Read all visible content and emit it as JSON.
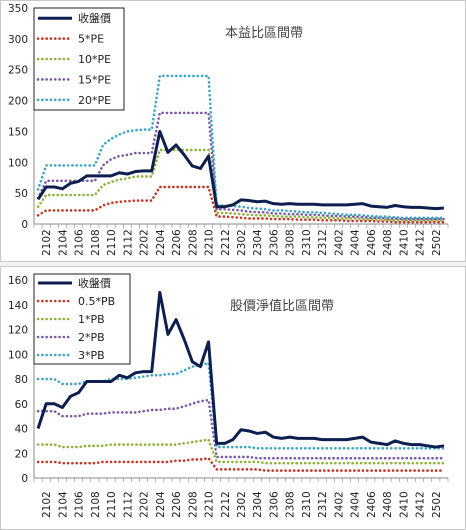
{
  "chart_data": [
    {
      "type": "line",
      "title": "本益比區間帶",
      "xlabel": "",
      "ylabel": "",
      "ylim": [
        0,
        350
      ],
      "yticks": [
        0,
        50,
        100,
        150,
        200,
        250,
        300,
        350
      ],
      "categories": [
        "2101",
        "2102",
        "2103",
        "2104",
        "2105",
        "2106",
        "2107",
        "2108",
        "2109",
        "2110",
        "2111",
        "2112",
        "2201",
        "2202",
        "2203",
        "2204",
        "2205",
        "2206",
        "2207",
        "2208",
        "2209",
        "2210",
        "2211",
        "2212",
        "2301",
        "2302",
        "2303",
        "2304",
        "2305",
        "2306",
        "2307",
        "2308",
        "2309",
        "2310",
        "2311",
        "2312",
        "2401",
        "2402",
        "2403",
        "2404",
        "2405",
        "2406",
        "2407",
        "2408",
        "2409",
        "2410",
        "2411",
        "2412",
        "2501",
        "2502",
        "2503"
      ],
      "tick_labels": [
        "2102",
        "2104",
        "2106",
        "2108",
        "2110",
        "2112",
        "2202",
        "2204",
        "2206",
        "2208",
        "2210",
        "2212",
        "2302",
        "2304",
        "2306",
        "2308",
        "2310",
        "2312",
        "2402",
        "2404",
        "2406",
        "2408",
        "2410",
        "2412",
        "2502"
      ],
      "legend_position": "top-left",
      "series": [
        {
          "name": "收盤價",
          "color": "#0d1f4f",
          "style": "solid",
          "values": [
            40,
            60,
            60,
            57,
            66,
            69,
            78,
            78,
            78,
            78,
            83,
            81,
            85,
            86,
            86,
            150,
            116,
            128,
            112,
            94,
            90,
            110,
            28,
            28,
            31,
            39,
            38,
            36,
            37,
            33,
            32,
            33,
            32,
            32,
            32,
            31,
            31,
            31,
            31,
            32,
            33,
            29,
            28,
            27,
            30,
            28,
            27,
            27,
            26,
            25,
            26
          ]
        },
        {
          "name": "5*PE",
          "color": "#c0392b",
          "style": "dotted",
          "values": [
            14,
            22,
            22,
            22,
            22,
            22,
            22,
            22,
            30,
            34,
            36,
            37,
            38,
            38,
            38,
            60,
            60,
            60,
            60,
            60,
            60,
            60,
            12,
            12,
            11,
            10,
            9,
            9,
            9,
            8,
            8,
            8,
            7,
            7,
            7,
            6,
            6,
            6,
            5,
            5,
            5,
            5,
            4,
            4,
            3,
            3,
            3,
            3,
            3,
            3,
            3
          ]
        },
        {
          "name": "10*PE",
          "color": "#8db33a",
          "style": "dotted",
          "values": [
            28,
            47,
            47,
            47,
            47,
            47,
            47,
            47,
            63,
            68,
            72,
            74,
            77,
            77,
            77,
            120,
            120,
            120,
            120,
            120,
            120,
            120,
            18,
            18,
            17,
            16,
            15,
            14,
            14,
            13,
            12,
            12,
            12,
            11,
            11,
            10,
            10,
            9,
            9,
            9,
            8,
            8,
            7,
            7,
            6,
            6,
            6,
            6,
            6,
            6,
            6
          ]
        },
        {
          "name": "15*PE",
          "color": "#7a5aa6",
          "style": "dotted",
          "values": [
            42,
            70,
            70,
            70,
            70,
            70,
            70,
            70,
            95,
            105,
            110,
            112,
            115,
            115,
            115,
            180,
            180,
            180,
            180,
            180,
            180,
            180,
            24,
            24,
            23,
            22,
            20,
            19,
            19,
            17,
            17,
            16,
            16,
            15,
            15,
            14,
            13,
            13,
            12,
            12,
            11,
            10,
            10,
            9,
            9,
            8,
            8,
            8,
            8,
            8,
            8
          ]
        },
        {
          "name": "20*PE",
          "color": "#3aa6c4",
          "style": "dotted",
          "values": [
            56,
            95,
            95,
            95,
            95,
            95,
            95,
            95,
            128,
            138,
            145,
            150,
            152,
            153,
            153,
            240,
            240,
            240,
            240,
            240,
            240,
            240,
            30,
            30,
            29,
            28,
            26,
            25,
            24,
            22,
            22,
            21,
            20,
            19,
            19,
            18,
            17,
            16,
            15,
            15,
            14,
            13,
            12,
            12,
            11,
            10,
            10,
            10,
            10,
            10,
            10
          ]
        }
      ]
    },
    {
      "type": "line",
      "title": "股價淨值比區間帶",
      "xlabel": "",
      "ylabel": "",
      "ylim": [
        0,
        160
      ],
      "yticks": [
        0,
        20,
        40,
        60,
        80,
        100,
        120,
        140,
        160
      ],
      "categories": [
        "2101",
        "2102",
        "2103",
        "2104",
        "2105",
        "2106",
        "2107",
        "2108",
        "2109",
        "2110",
        "2111",
        "2112",
        "2201",
        "2202",
        "2203",
        "2204",
        "2205",
        "2206",
        "2207",
        "2208",
        "2209",
        "2210",
        "2211",
        "2212",
        "2301",
        "2302",
        "2303",
        "2304",
        "2305",
        "2306",
        "2307",
        "2308",
        "2309",
        "2310",
        "2311",
        "2312",
        "2401",
        "2402",
        "2403",
        "2404",
        "2405",
        "2406",
        "2407",
        "2408",
        "2409",
        "2410",
        "2411",
        "2412",
        "2501",
        "2502",
        "2503"
      ],
      "tick_labels": [
        "2102",
        "2104",
        "2106",
        "2108",
        "2110",
        "2112",
        "2202",
        "2204",
        "2206",
        "2208",
        "2210",
        "2212",
        "2302",
        "2304",
        "2306",
        "2308",
        "2310",
        "2312",
        "2402",
        "2404",
        "2406",
        "2408",
        "2410",
        "2412",
        "2502"
      ],
      "legend_position": "top-left",
      "series": [
        {
          "name": "收盤價",
          "color": "#0d1f4f",
          "style": "solid",
          "values": [
            40,
            60,
            60,
            57,
            66,
            69,
            78,
            78,
            78,
            78,
            83,
            81,
            85,
            86,
            86,
            150,
            116,
            128,
            112,
            94,
            90,
            110,
            28,
            28,
            31,
            39,
            38,
            36,
            37,
            33,
            32,
            33,
            32,
            32,
            32,
            31,
            31,
            31,
            31,
            32,
            33,
            29,
            28,
            27,
            30,
            28,
            27,
            27,
            26,
            25,
            26
          ]
        },
        {
          "name": "0.5*PB",
          "color": "#c0392b",
          "style": "dotted",
          "values": [
            13,
            13,
            13,
            12,
            12,
            12,
            12,
            12,
            13,
            13,
            13,
            13,
            13,
            13,
            13,
            13,
            13,
            14,
            14,
            15,
            15,
            16,
            7,
            7,
            7,
            7,
            7,
            7,
            6,
            6,
            6,
            6,
            6,
            6,
            6,
            6,
            6,
            6,
            6,
            6,
            6,
            6,
            6,
            6,
            6,
            6,
            6,
            6,
            6,
            6,
            6
          ]
        },
        {
          "name": "1*PB",
          "color": "#8db33a",
          "style": "dotted",
          "values": [
            27,
            27,
            27,
            25,
            25,
            25,
            26,
            26,
            26,
            27,
            27,
            27,
            27,
            27,
            27,
            27,
            27,
            27,
            28,
            29,
            30,
            31,
            13,
            13,
            13,
            13,
            13,
            13,
            12,
            12,
            12,
            12,
            12,
            12,
            12,
            12,
            12,
            12,
            12,
            12,
            12,
            12,
            12,
            12,
            12,
            12,
            12,
            12,
            12,
            12,
            12
          ]
        },
        {
          "name": "2*PB",
          "color": "#7a5aa6",
          "style": "dotted",
          "values": [
            54,
            54,
            54,
            50,
            50,
            50,
            52,
            52,
            52,
            53,
            53,
            53,
            53,
            54,
            55,
            55,
            56,
            56,
            58,
            60,
            62,
            63,
            17,
            17,
            17,
            17,
            17,
            16,
            16,
            16,
            16,
            16,
            16,
            16,
            16,
            16,
            16,
            16,
            16,
            16,
            16,
            16,
            16,
            16,
            16,
            16,
            16,
            16,
            16,
            16,
            16
          ]
        },
        {
          "name": "3*PB",
          "color": "#3aa6c4",
          "style": "dotted",
          "values": [
            80,
            80,
            80,
            76,
            76,
            76,
            78,
            78,
            78,
            80,
            80,
            80,
            81,
            82,
            83,
            83,
            84,
            84,
            87,
            90,
            91,
            93,
            25,
            25,
            25,
            25,
            25,
            24,
            24,
            24,
            24,
            24,
            24,
            24,
            24,
            24,
            24,
            24,
            24,
            24,
            24,
            24,
            24,
            24,
            24,
            24,
            24,
            24,
            24,
            24,
            24
          ]
        }
      ]
    }
  ]
}
